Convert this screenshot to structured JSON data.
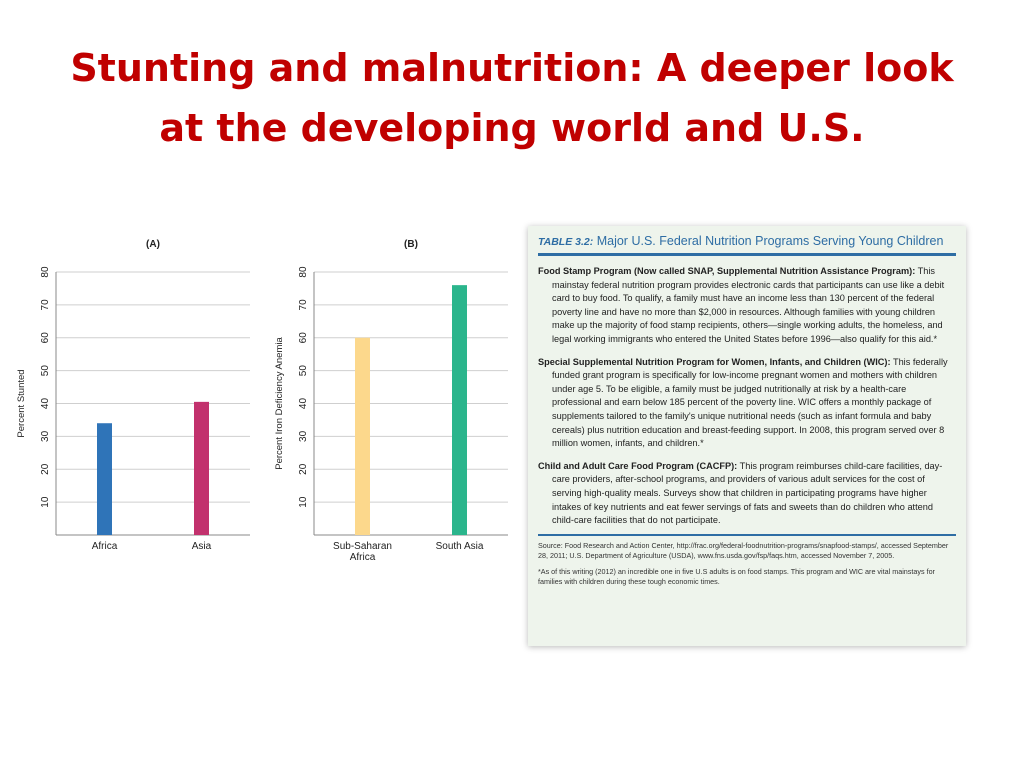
{
  "slide": {
    "title_line1": "Stunting and malnutrition: A deeper look",
    "title_line2": "at the developing world and U.S."
  },
  "chart_data": [
    {
      "type": "bar",
      "panel_label": "(A)",
      "categories": [
        "Africa",
        "Asia"
      ],
      "values": [
        34,
        40.5
      ],
      "colors": [
        "#2f74b8",
        "#c2316d"
      ],
      "xlabel": "",
      "ylabel": "Percent Stunted",
      "ylim": [
        0,
        80
      ],
      "yticks": [
        10,
        20,
        30,
        40,
        50,
        60,
        70,
        80
      ],
      "grid": true
    },
    {
      "type": "bar",
      "panel_label": "(B)",
      "categories": [
        "Sub-Saharan Africa",
        "South Asia"
      ],
      "category_lines": [
        [
          "Sub-Saharan",
          "Africa"
        ],
        [
          "South Asia"
        ]
      ],
      "values": [
        60,
        76
      ],
      "colors": [
        "#fcd88c",
        "#2bb58c"
      ],
      "xlabel": "",
      "ylabel": "Percent Iron Deficiency Anemia",
      "ylim": [
        0,
        80
      ],
      "yticks": [
        10,
        20,
        30,
        40,
        50,
        60,
        70,
        80
      ],
      "grid": true
    }
  ],
  "table": {
    "number": "TABLE 3.2:",
    "title": "Major U.S. Federal Nutrition Programs Serving Young Children",
    "programs": [
      {
        "name": "Food Stamp Program (Now called SNAP, Supplemental Nutrition Assistance Program):",
        "text": "This mainstay federal nutrition program provides electronic cards that participants can use like a debit card to buy food. To qualify, a family must have an income less than 130 percent of the federal poverty line and have no more than $2,000 in resources. Although families with young children make up the majority of food stamp recipients, others—single working adults, the homeless, and legal working immigrants who entered the United States before 1996—also qualify for this aid.*"
      },
      {
        "name": "Special Supplemental Nutrition Program for Women, Infants, and Children (WIC):",
        "text": "This federally funded grant program is specifically for low-income pregnant women and mothers with children under age 5. To be eligible, a family must be judged nutritionally at risk by a health-care professional and earn below 185 percent of the poverty line. WIC offers a monthly package of supplements tailored to the family's unique nutritional needs (such as infant formula and baby cereals) plus nutrition education and breast-feeding support. In 2008, this program served over 8 million women, infants, and children.*"
      },
      {
        "name": "Child and Adult Care Food Program (CACFP):",
        "text": "This program reimburses child-care facilities, day-care providers, after-school programs, and providers of various adult services for the cost of serving high-quality meals. Surveys show that children  in participating programs have higher intakes of key nutrients and eat fewer servings of fats and sweets than do children who attend child-care facilities that do not participate."
      }
    ],
    "source": "Source: Food Research and Action Center, http://frac.org/federal-foodnutrition-programs/snapfood-stamps/, accessed September 28, 2011; U.S. Department of Agriculture (USDA), www.fns.usda.gov/fsp/faqs.htm, accessed November 7, 2005.",
    "footnote": "*As of this writing (2012) an incredible one in five U.S adults is on food stamps. This program and WIC are vital mainstays for families with children during these tough economic times."
  }
}
